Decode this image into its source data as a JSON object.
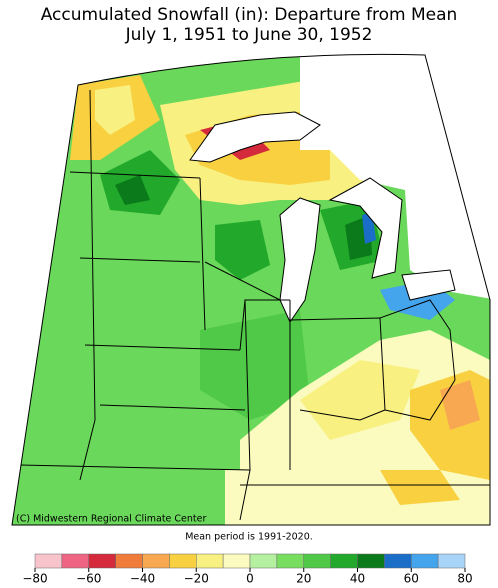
{
  "title": "Accumulated Snowfall (in): Departure from Mean",
  "subtitle": "July 1, 1951 to June 30, 1952",
  "credit": "(C) Midwestern Regional Climate Center",
  "note": "Mean period is 1991-2020.",
  "colorbar": {
    "bounds": [
      -80,
      -70,
      -60,
      -50,
      -40,
      -30,
      -20,
      -10,
      0,
      10,
      20,
      30,
      40,
      50,
      60,
      70,
      80
    ],
    "colors": [
      "#f8c4cc",
      "#ee6482",
      "#d42a3c",
      "#f07c3c",
      "#f8a850",
      "#f8d040",
      "#f8f080",
      "#fbfbc0",
      "#b4f0a0",
      "#78de60",
      "#50c848",
      "#22a82a",
      "#0a7a1a",
      "#1a6ec8",
      "#44a4ec",
      "#a8d4f8"
    ],
    "ticks": [
      {
        "value": -80,
        "label": "−80"
      },
      {
        "value": -60,
        "label": "−60"
      },
      {
        "value": -40,
        "label": "−40"
      },
      {
        "value": -20,
        "label": "−20"
      },
      0,
      20,
      40,
      60,
      80
    ]
  }
}
